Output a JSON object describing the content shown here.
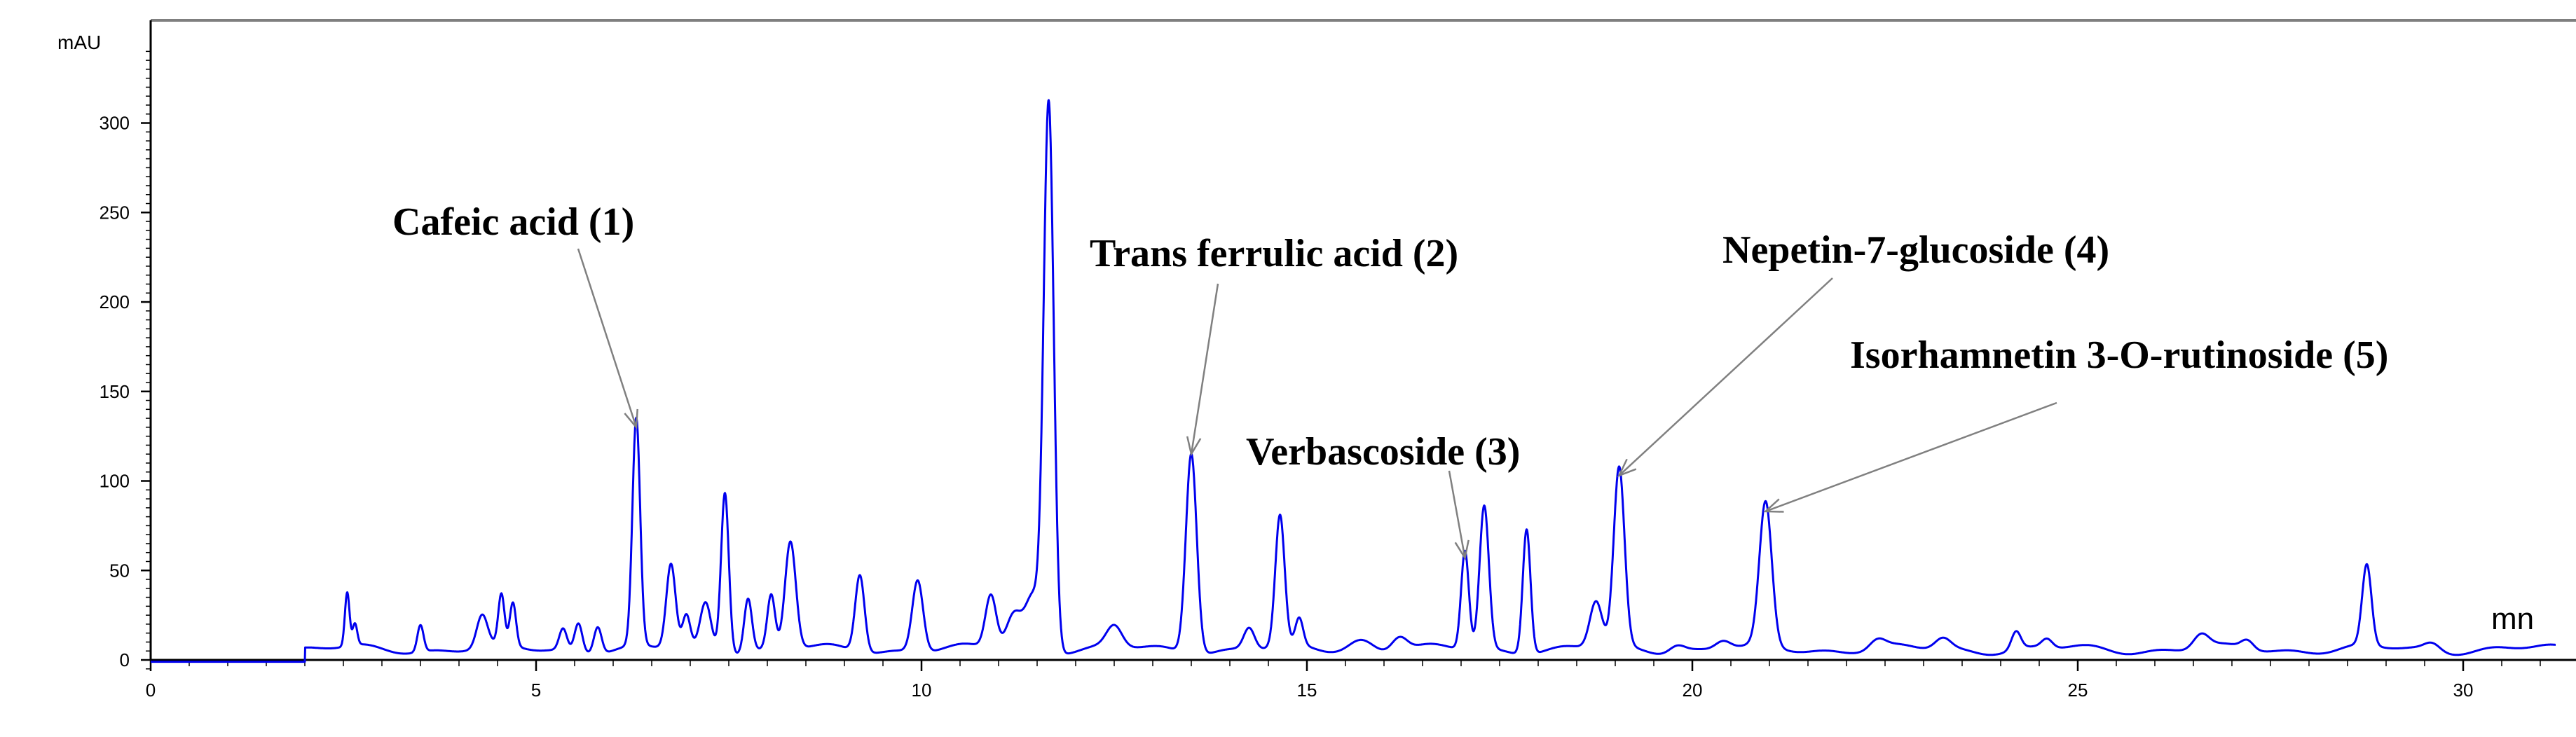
{
  "chart_data": {
    "type": "line",
    "title": "",
    "y_unit": "mAU",
    "x_unit": "mn",
    "xlim": [
      0,
      31.2
    ],
    "ylim": [
      -8,
      350
    ],
    "x_ticks": [
      0,
      5,
      10,
      15,
      20,
      25,
      30
    ],
    "y_ticks": [
      0,
      50,
      100,
      150,
      200,
      250,
      300
    ],
    "grid": false,
    "line_color": "#0000ee",
    "baseline": {
      "start": [
        0,
        -1
      ],
      "rise_start": 2.0,
      "level": 6
    },
    "series": [
      {
        "peaks": [
          [
            2.55,
            30,
            0.03
          ],
          [
            2.65,
            12,
            0.03
          ],
          [
            3.5,
            15,
            0.04
          ],
          [
            4.3,
            18,
            0.07
          ],
          [
            4.55,
            28,
            0.04
          ],
          [
            4.7,
            24,
            0.04
          ],
          [
            5.35,
            12,
            0.05
          ],
          [
            5.55,
            16,
            0.05
          ],
          [
            5.8,
            15,
            0.05
          ],
          [
            6.3,
            127,
            0.05
          ],
          [
            6.75,
            47,
            0.06
          ],
          [
            6.95,
            18,
            0.05
          ],
          [
            7.2,
            26,
            0.07
          ],
          [
            7.45,
            90,
            0.05
          ],
          [
            7.75,
            30,
            0.05
          ],
          [
            8.05,
            30,
            0.05
          ],
          [
            8.3,
            60,
            0.07
          ],
          [
            9.2,
            43,
            0.06
          ],
          [
            9.95,
            40,
            0.07
          ],
          [
            10.9,
            30,
            0.07
          ],
          [
            11.2,
            20,
            0.1
          ],
          [
            11.45,
            30,
            0.1
          ],
          [
            11.65,
            305,
            0.065
          ],
          [
            12.5,
            12,
            0.1
          ],
          [
            13.5,
            112,
            0.07
          ],
          [
            14.25,
            12,
            0.07
          ],
          [
            14.65,
            73,
            0.06
          ],
          [
            14.9,
            15,
            0.05
          ],
          [
            15.7,
            6,
            0.15
          ],
          [
            16.2,
            8,
            0.1
          ],
          [
            17.05,
            55,
            0.05
          ],
          [
            17.3,
            80,
            0.06
          ],
          [
            17.85,
            70,
            0.05
          ],
          [
            18.75,
            26,
            0.08
          ],
          [
            19.05,
            100,
            0.07
          ],
          [
            19.8,
            4,
            0.1
          ],
          [
            20.4,
            5,
            0.1
          ],
          [
            20.95,
            80,
            0.08
          ],
          [
            22.4,
            5,
            0.1
          ],
          [
            23.25,
            6,
            0.1
          ],
          [
            24.2,
            10,
            0.06
          ],
          [
            24.6,
            5,
            0.07
          ],
          [
            26.6,
            8,
            0.1
          ],
          [
            27.2,
            5,
            0.08
          ],
          [
            28.75,
            45,
            0.06
          ],
          [
            29.6,
            4,
            0.1
          ]
        ]
      }
    ],
    "annotations": [
      {
        "text": "Cafeic acid (1)",
        "x": 6.3,
        "y": 130
      },
      {
        "text": "Trans ferrulic acid (2)",
        "x": 13.5,
        "y": 115
      },
      {
        "text": "Verbascoside (3)",
        "x": 17.05,
        "y": 57
      },
      {
        "text": "Nepetin-7-glucoside (4)",
        "x": 19.05,
        "y": 103
      },
      {
        "text": "Isorhamnetin 3-O-rutinoside (5)",
        "x": 20.95,
        "y": 83
      }
    ]
  }
}
